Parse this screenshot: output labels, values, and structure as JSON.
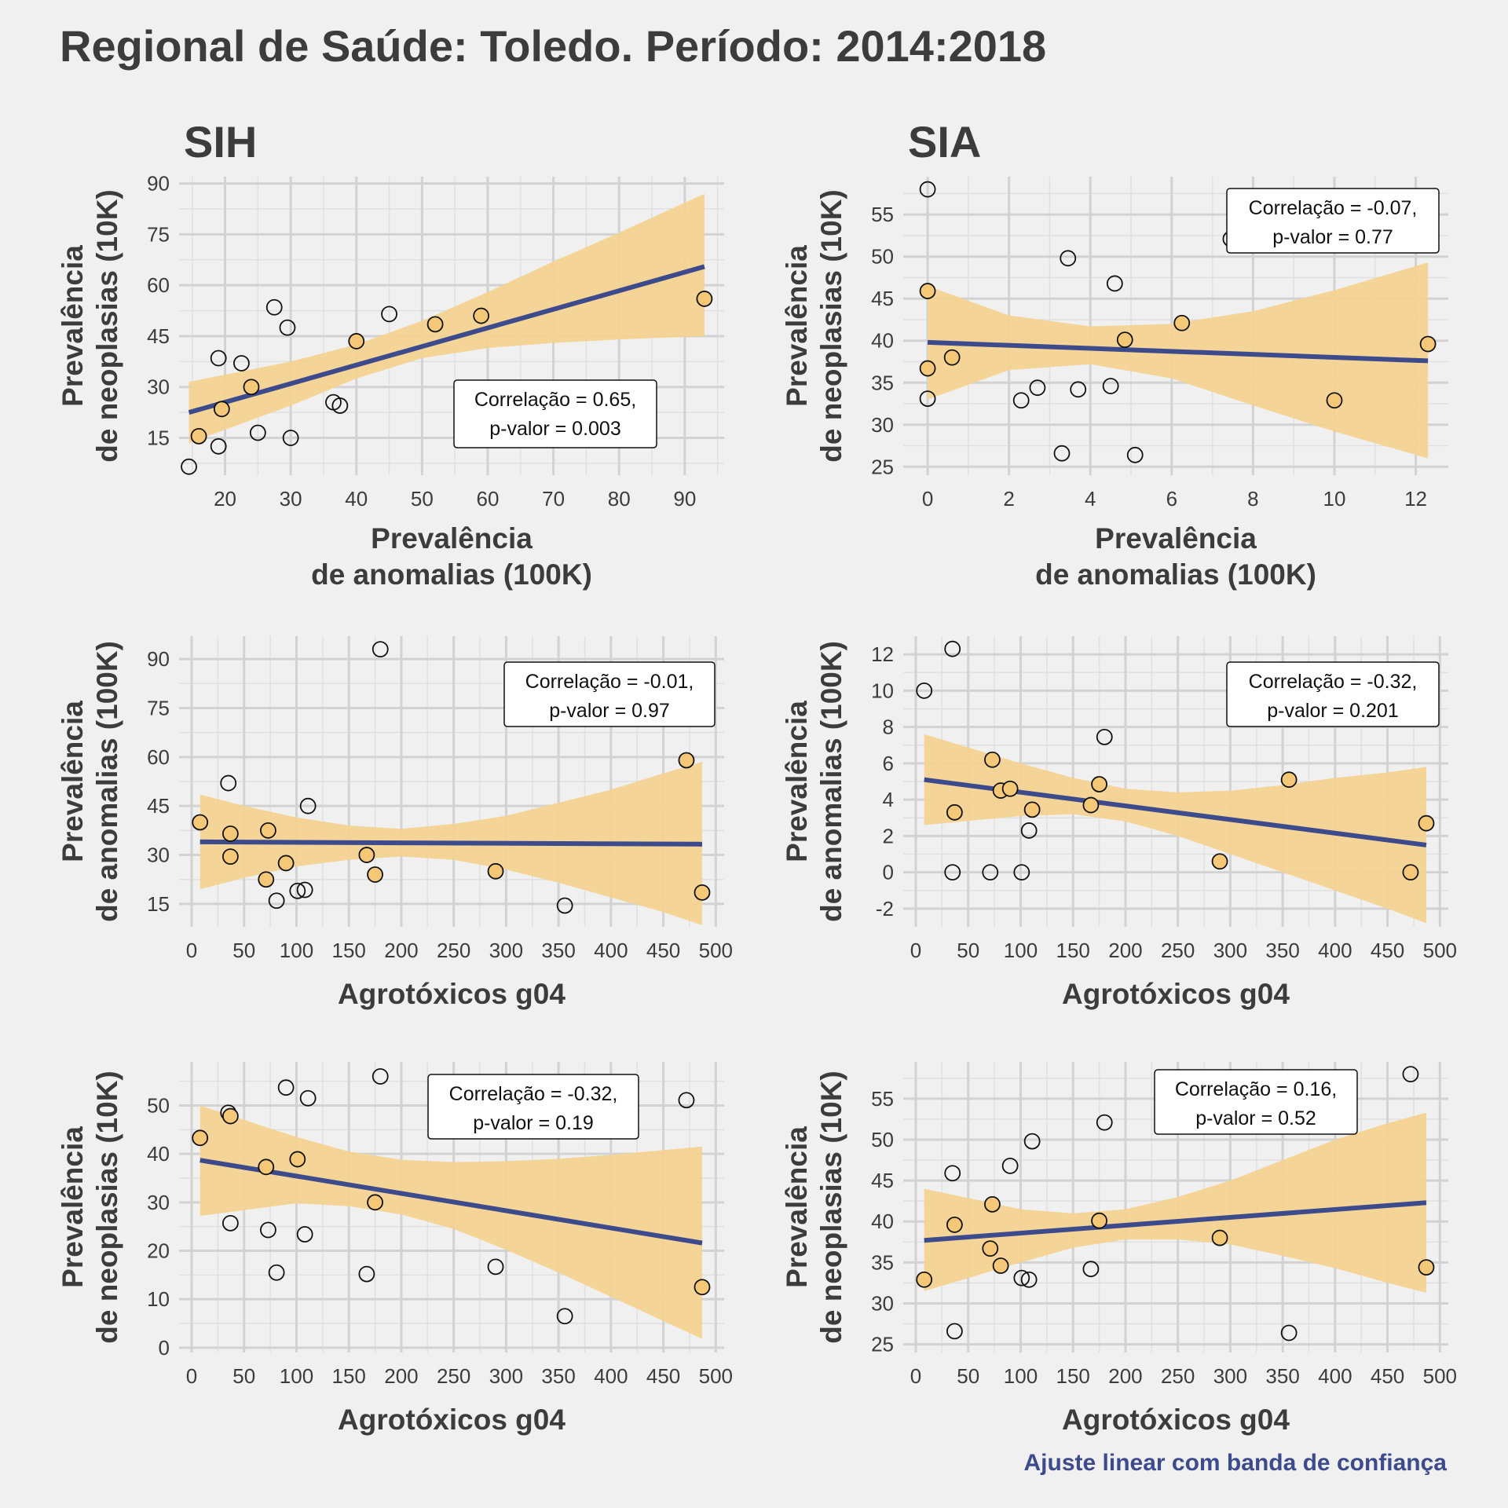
{
  "title": "Regional de Saúde: Toledo. Período: 2014:2018",
  "column_titles": [
    "SIH",
    "SIA"
  ],
  "caption": "Ajuste linear com banda de confiança",
  "colors": {
    "background": "#f0f0f0",
    "grid": "#d2d2d2",
    "band": "#f5d38f",
    "fit_line": "#3d4b8c",
    "point_fill_orange": "#f5c878",
    "point_stroke": "#111111",
    "text": "#3c3c3c"
  },
  "chart_data": [
    {
      "type": "scatter",
      "panel": "SIH - anomalias vs neoplasias",
      "xlabel": "Prevalência de anomalias (100K)",
      "ylabel": "Prevalência de neoplasias (10K)",
      "xlim": [
        13,
        96
      ],
      "ylim": [
        4,
        92
      ],
      "xticks": [
        20,
        30,
        40,
        50,
        60,
        70,
        80,
        90
      ],
      "yticks": [
        15,
        30,
        45,
        60,
        75,
        90
      ],
      "fit": {
        "x": [
          14.5,
          93
        ],
        "y": [
          22.5,
          65.5
        ]
      },
      "band": {
        "x": [
          14.5,
          30,
          40,
          50,
          60,
          70,
          80,
          93
        ],
        "upper": [
          31.5,
          37.5,
          42.5,
          49.5,
          58,
          67,
          75.5,
          87
        ],
        "lower": [
          13.5,
          24.5,
          32.5,
          38.5,
          41.5,
          43,
          44,
          45
        ]
      },
      "points": [
        {
          "x": 14.5,
          "y": 6.5,
          "in_band": false
        },
        {
          "x": 16,
          "y": 15.5,
          "in_band": true
        },
        {
          "x": 19,
          "y": 12.5,
          "in_band": false
        },
        {
          "x": 19,
          "y": 38.5,
          "in_band": false
        },
        {
          "x": 19.5,
          "y": 23.5,
          "in_band": true
        },
        {
          "x": 22.5,
          "y": 37,
          "in_band": false
        },
        {
          "x": 24,
          "y": 30,
          "in_band": true
        },
        {
          "x": 25,
          "y": 16.5,
          "in_band": false
        },
        {
          "x": 27.5,
          "y": 53.5,
          "in_band": false
        },
        {
          "x": 29.5,
          "y": 47.5,
          "in_band": false
        },
        {
          "x": 30,
          "y": 15,
          "in_band": false
        },
        {
          "x": 36.5,
          "y": 25.5,
          "in_band": false
        },
        {
          "x": 37.5,
          "y": 24.5,
          "in_band": false
        },
        {
          "x": 40,
          "y": 43.5,
          "in_band": true
        },
        {
          "x": 45,
          "y": 51.5,
          "in_band": false
        },
        {
          "x": 52,
          "y": 48.5,
          "in_band": true
        },
        {
          "x": 59,
          "y": 51,
          "in_band": true
        },
        {
          "x": 93,
          "y": 56,
          "in_band": true
        }
      ],
      "correlation": {
        "line1": "Correlação = 0.65,",
        "line2": "p-valor = 0.003",
        "pos": "bottom-right"
      }
    },
    {
      "type": "scatter",
      "panel": "SIA - anomalias vs neoplasias",
      "xlabel": "Prevalência de anomalias (100K)",
      "ylabel": "Prevalência de neoplasias (10K)",
      "xlim": [
        -0.6,
        12.8
      ],
      "ylim": [
        24,
        59.5
      ],
      "xticks": [
        0,
        2,
        4,
        6,
        8,
        10,
        12
      ],
      "yticks": [
        25,
        30,
        35,
        40,
        45,
        50,
        55
      ],
      "fit": {
        "x": [
          0,
          12.3
        ],
        "y": [
          39.8,
          37.6
        ]
      },
      "band": {
        "x": [
          0,
          2,
          4,
          6,
          8,
          10,
          12.3
        ],
        "upper": [
          46.5,
          43,
          41.7,
          42,
          43.5,
          46,
          49.3
        ],
        "lower": [
          33,
          36.5,
          37.2,
          35.5,
          32.3,
          29.2,
          26
        ]
      },
      "points": [
        {
          "x": 0,
          "y": 58,
          "in_band": false
        },
        {
          "x": 0,
          "y": 45.9,
          "in_band": true
        },
        {
          "x": 0,
          "y": 36.7,
          "in_band": true
        },
        {
          "x": 0,
          "y": 33.1,
          "in_band": false
        },
        {
          "x": 0.6,
          "y": 38,
          "in_band": true
        },
        {
          "x": 2.3,
          "y": 32.9,
          "in_band": false
        },
        {
          "x": 2.7,
          "y": 34.4,
          "in_band": false
        },
        {
          "x": 3.3,
          "y": 26.6,
          "in_band": false
        },
        {
          "x": 3.45,
          "y": 49.8,
          "in_band": false
        },
        {
          "x": 3.7,
          "y": 34.2,
          "in_band": false
        },
        {
          "x": 4.5,
          "y": 34.6,
          "in_band": false
        },
        {
          "x": 4.6,
          "y": 46.8,
          "in_band": false
        },
        {
          "x": 4.85,
          "y": 40.1,
          "in_band": true
        },
        {
          "x": 5.1,
          "y": 26.4,
          "in_band": false
        },
        {
          "x": 6.25,
          "y": 42.1,
          "in_band": true
        },
        {
          "x": 7.45,
          "y": 52.1,
          "in_band": false
        },
        {
          "x": 10,
          "y": 32.9,
          "in_band": true
        },
        {
          "x": 12.3,
          "y": 39.6,
          "in_band": true
        }
      ],
      "correlation": {
        "line1": "Correlação = -0.07,",
        "line2": "p-valor = 0.77",
        "pos": "top-right"
      }
    },
    {
      "type": "scatter",
      "panel": "SIH - agrotoxicos vs anomalias",
      "xlabel": "Agrotóxicos g04",
      "ylabel": "Prevalência de anomalias (100K)",
      "xlim": [
        -12,
        508
      ],
      "ylim": [
        8,
        97
      ],
      "xticks": [
        0,
        50,
        100,
        150,
        200,
        250,
        300,
        350,
        400,
        450,
        500
      ],
      "yticks": [
        15,
        30,
        45,
        60,
        75,
        90
      ],
      "fit": {
        "x": [
          8,
          487
        ],
        "y": [
          34,
          33.3
        ]
      },
      "band": {
        "x": [
          8,
          50,
          100,
          150,
          200,
          250,
          300,
          350,
          400,
          450,
          487
        ],
        "upper": [
          48.5,
          45,
          41.5,
          39,
          38,
          39.5,
          42,
          46,
          50,
          55,
          58.5
        ],
        "lower": [
          19.5,
          23,
          26.5,
          28.5,
          29.5,
          28.5,
          25.5,
          21.5,
          17,
          12.5,
          8.5
        ]
      },
      "points": [
        {
          "x": 8,
          "y": 40,
          "in_band": true
        },
        {
          "x": 35,
          "y": 52,
          "in_band": false
        },
        {
          "x": 37,
          "y": 36.5,
          "in_band": true
        },
        {
          "x": 37,
          "y": 29.5,
          "in_band": true
        },
        {
          "x": 71,
          "y": 22.5,
          "in_band": true
        },
        {
          "x": 73,
          "y": 37.5,
          "in_band": true
        },
        {
          "x": 81,
          "y": 16,
          "in_band": false
        },
        {
          "x": 90,
          "y": 27.5,
          "in_band": true
        },
        {
          "x": 101,
          "y": 19,
          "in_band": false
        },
        {
          "x": 108,
          "y": 19.3,
          "in_band": false
        },
        {
          "x": 111,
          "y": 45,
          "in_band": false
        },
        {
          "x": 167,
          "y": 30,
          "in_band": true
        },
        {
          "x": 175,
          "y": 24,
          "in_band": true
        },
        {
          "x": 180,
          "y": 93,
          "in_band": false
        },
        {
          "x": 290,
          "y": 25,
          "in_band": true
        },
        {
          "x": 356,
          "y": 14.5,
          "in_band": false
        },
        {
          "x": 472,
          "y": 59,
          "in_band": true
        },
        {
          "x": 487,
          "y": 18.5,
          "in_band": true
        }
      ],
      "correlation": {
        "line1": "Correlação = -0.01,",
        "line2": "p-valor = 0.97",
        "pos": "top-right"
      }
    },
    {
      "type": "scatter",
      "panel": "SIA - agrotoxicos vs anomalias",
      "xlabel": "Agrotóxicos g04",
      "ylabel": "Prevalência de anomalias (100K)",
      "xlim": [
        -12,
        508
      ],
      "ylim": [
        -3,
        13
      ],
      "xticks": [
        0,
        50,
        100,
        150,
        200,
        250,
        300,
        350,
        400,
        450,
        500
      ],
      "yticks": [
        -2,
        0,
        2,
        4,
        6,
        8,
        10,
        12
      ],
      "fit": {
        "x": [
          8,
          487
        ],
        "y": [
          5.1,
          1.5
        ]
      },
      "band": {
        "x": [
          8,
          100,
          150,
          200,
          250,
          300,
          350,
          400,
          450,
          487
        ],
        "upper": [
          7.6,
          6,
          5.2,
          4.6,
          4.4,
          4.5,
          4.8,
          5.2,
          5.5,
          5.8
        ],
        "lower": [
          2.6,
          3.1,
          3.2,
          2.8,
          2,
          1,
          0,
          -1,
          -2,
          -2.8
        ]
      },
      "points": [
        {
          "x": 8,
          "y": 10,
          "in_band": false
        },
        {
          "x": 35,
          "y": 12.3,
          "in_band": false
        },
        {
          "x": 35,
          "y": 0,
          "in_band": false
        },
        {
          "x": 37,
          "y": 3.3,
          "in_band": true
        },
        {
          "x": 71,
          "y": 0,
          "in_band": false
        },
        {
          "x": 73,
          "y": 6.2,
          "in_band": true
        },
        {
          "x": 81,
          "y": 4.5,
          "in_band": true
        },
        {
          "x": 90,
          "y": 4.6,
          "in_band": true
        },
        {
          "x": 101,
          "y": 0,
          "in_band": false
        },
        {
          "x": 108,
          "y": 2.3,
          "in_band": false
        },
        {
          "x": 111,
          "y": 3.45,
          "in_band": true
        },
        {
          "x": 167,
          "y": 3.7,
          "in_band": true
        },
        {
          "x": 175,
          "y": 4.85,
          "in_band": true
        },
        {
          "x": 180,
          "y": 7.45,
          "in_band": false
        },
        {
          "x": 290,
          "y": 0.6,
          "in_band": true
        },
        {
          "x": 356,
          "y": 5.1,
          "in_band": true
        },
        {
          "x": 472,
          "y": 0,
          "in_band": true
        },
        {
          "x": 487,
          "y": 2.7,
          "in_band": true
        }
      ],
      "correlation": {
        "line1": "Correlação = -0.32,",
        "line2": "p-valor = 0.201",
        "pos": "top-right"
      }
    },
    {
      "type": "scatter",
      "panel": "SIH - agrotoxicos vs neoplasias",
      "xlabel": "Agrotóxicos g04",
      "ylabel": "Prevalência de neoplasias (10K)",
      "xlim": [
        -12,
        508
      ],
      "ylim": [
        -1,
        59
      ],
      "xticks": [
        0,
        50,
        100,
        150,
        200,
        250,
        300,
        350,
        400,
        450,
        500
      ],
      "yticks": [
        0,
        10,
        20,
        30,
        40,
        50
      ],
      "fit": {
        "x": [
          8,
          487
        ],
        "y": [
          38.7,
          21.6
        ]
      },
      "band": {
        "x": [
          8,
          100,
          150,
          200,
          250,
          300,
          350,
          400,
          450,
          487
        ],
        "upper": [
          50,
          43.5,
          40.5,
          38.8,
          38.3,
          38.5,
          39,
          39.8,
          40.8,
          41.5
        ],
        "lower": [
          27.2,
          29.8,
          29.2,
          27.5,
          24.5,
          20.2,
          15.5,
          10.5,
          5.5,
          1.8
        ]
      },
      "points": [
        {
          "x": 8,
          "y": 43.3,
          "in_band": true
        },
        {
          "x": 35,
          "y": 48.5,
          "in_band": false
        },
        {
          "x": 37,
          "y": 47.8,
          "in_band": true
        },
        {
          "x": 37,
          "y": 25.7,
          "in_band": false
        },
        {
          "x": 71,
          "y": 37.3,
          "in_band": true
        },
        {
          "x": 73,
          "y": 24.3,
          "in_band": false
        },
        {
          "x": 81,
          "y": 15.5,
          "in_band": false
        },
        {
          "x": 90,
          "y": 53.7,
          "in_band": false
        },
        {
          "x": 101,
          "y": 38.9,
          "in_band": true
        },
        {
          "x": 108,
          "y": 23.4,
          "in_band": false
        },
        {
          "x": 111,
          "y": 51.5,
          "in_band": false
        },
        {
          "x": 167,
          "y": 15.2,
          "in_band": false
        },
        {
          "x": 175,
          "y": 30,
          "in_band": true
        },
        {
          "x": 180,
          "y": 56,
          "in_band": false
        },
        {
          "x": 290,
          "y": 16.7,
          "in_band": false
        },
        {
          "x": 356,
          "y": 6.5,
          "in_band": false
        },
        {
          "x": 472,
          "y": 51.1,
          "in_band": false
        },
        {
          "x": 487,
          "y": 12.5,
          "in_band": true
        }
      ],
      "correlation": {
        "line1": "Correlação = -0.32,",
        "line2": "p-valor = 0.19",
        "pos": "top-right"
      }
    },
    {
      "type": "scatter",
      "panel": "SIA - agrotoxicos vs neoplasias",
      "xlabel": "Agrotóxicos g04",
      "ylabel": "Prevalência de neoplasias (10K)",
      "xlim": [
        -12,
        508
      ],
      "ylim": [
        24,
        59.5
      ],
      "xticks": [
        0,
        50,
        100,
        150,
        200,
        250,
        300,
        350,
        400,
        450,
        500
      ],
      "yticks": [
        25,
        30,
        35,
        40,
        45,
        50,
        55
      ],
      "fit": {
        "x": [
          8,
          487
        ],
        "y": [
          37.7,
          42.3
        ]
      },
      "band": {
        "x": [
          8,
          100,
          150,
          200,
          250,
          300,
          350,
          400,
          450,
          487
        ],
        "upper": [
          44,
          41.5,
          41,
          41.5,
          43,
          45,
          47.5,
          50,
          52,
          53.3
        ],
        "lower": [
          31.5,
          35,
          36.8,
          37.8,
          37.8,
          37.2,
          35.8,
          34.3,
          32.5,
          31.3
        ]
      },
      "points": [
        {
          "x": 8,
          "y": 32.9,
          "in_band": true
        },
        {
          "x": 35,
          "y": 45.9,
          "in_band": false
        },
        {
          "x": 37,
          "y": 39.6,
          "in_band": true
        },
        {
          "x": 37,
          "y": 26.6,
          "in_band": false
        },
        {
          "x": 71,
          "y": 36.7,
          "in_band": true
        },
        {
          "x": 73,
          "y": 42.1,
          "in_band": true
        },
        {
          "x": 81,
          "y": 34.6,
          "in_band": true
        },
        {
          "x": 90,
          "y": 46.8,
          "in_band": false
        },
        {
          "x": 101,
          "y": 33.1,
          "in_band": false
        },
        {
          "x": 108,
          "y": 32.9,
          "in_band": false
        },
        {
          "x": 111,
          "y": 49.8,
          "in_band": false
        },
        {
          "x": 167,
          "y": 34.2,
          "in_band": false
        },
        {
          "x": 175,
          "y": 40.1,
          "in_band": true
        },
        {
          "x": 180,
          "y": 52.1,
          "in_band": false
        },
        {
          "x": 290,
          "y": 38,
          "in_band": true
        },
        {
          "x": 356,
          "y": 26.4,
          "in_band": false
        },
        {
          "x": 472,
          "y": 58,
          "in_band": false
        },
        {
          "x": 487,
          "y": 34.4,
          "in_band": true
        }
      ],
      "correlation": {
        "line1": "Correlação = 0.16,",
        "line2": "p-valor = 0.52",
        "pos": "top-left"
      }
    }
  ]
}
